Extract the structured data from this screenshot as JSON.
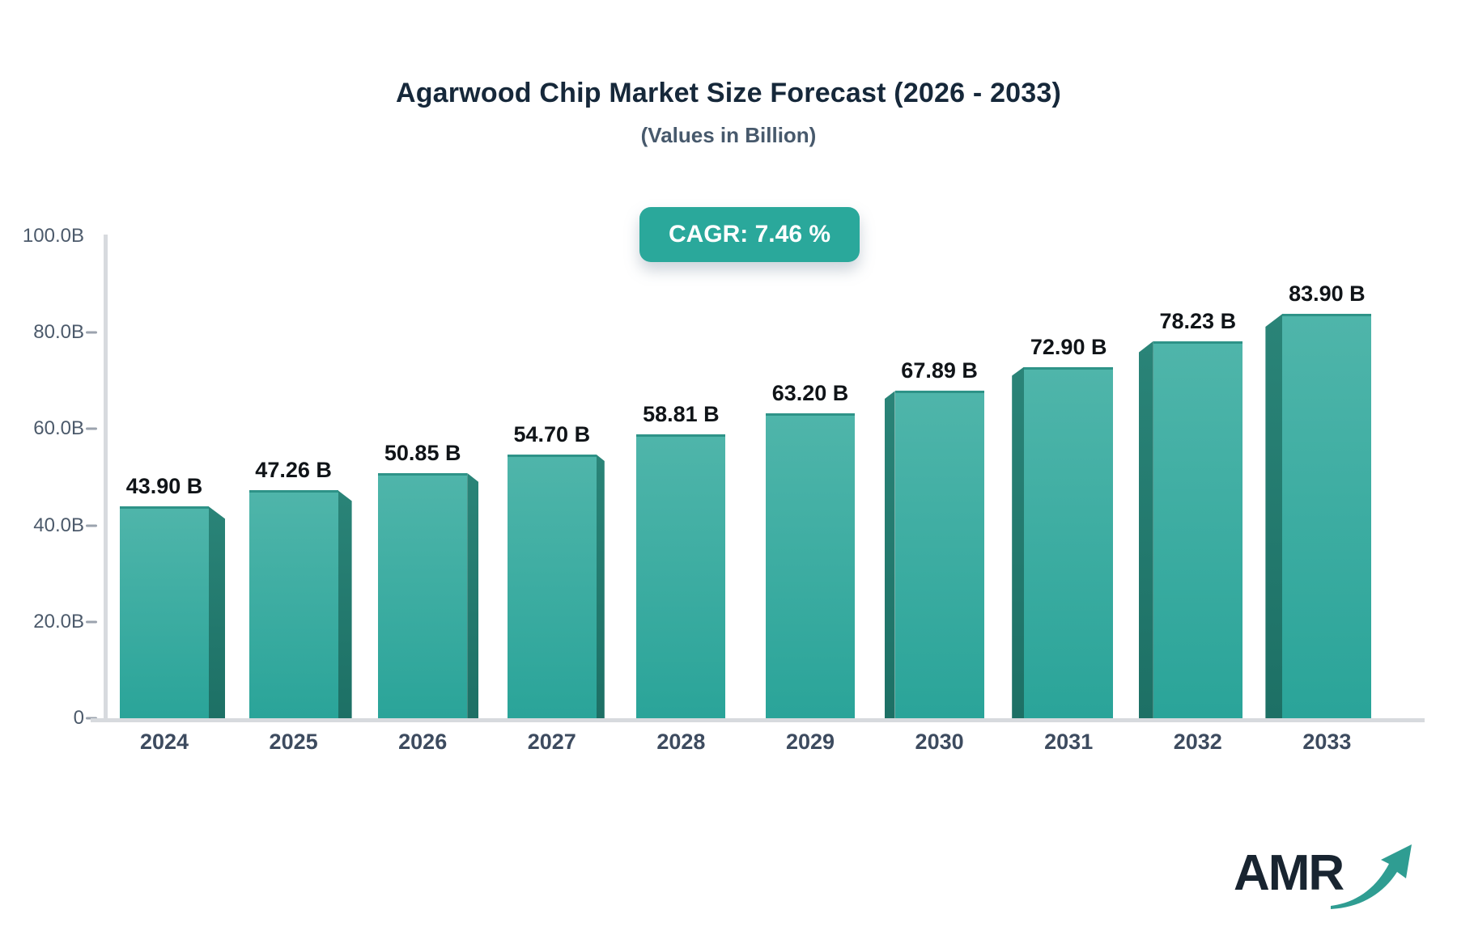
{
  "title": "Agarwood Chip Market Size Forecast (2026 - 2033)",
  "subtitle": "(Values in Billion)",
  "badge": {
    "label": "CAGR: 7.46 %"
  },
  "chart_data": {
    "type": "bar",
    "title": "Agarwood Chip Market Size Forecast (2026 - 2033)",
    "subtitle": "(Values in Billion)",
    "unit": "Billion",
    "categories": [
      "2024",
      "2025",
      "2026",
      "2027",
      "2028",
      "2029",
      "2030",
      "2031",
      "2032",
      "2033"
    ],
    "values": [
      43.9,
      47.26,
      50.85,
      54.7,
      58.81,
      63.2,
      67.89,
      72.9,
      78.23,
      83.9
    ],
    "value_labels": [
      "43.90 B",
      "47.26 B",
      "50.85 B",
      "54.70 B",
      "58.81 B",
      "63.20 B",
      "67.89 B",
      "72.90 B",
      "78.23 B",
      "83.90 B"
    ],
    "cagr": "7.46 %",
    "ylim": [
      0,
      100
    ],
    "yticks": [
      {
        "label": "100.0B",
        "value": 100
      },
      {
        "label": "80.0B",
        "value": 80
      },
      {
        "label": "60.0B",
        "value": 60
      },
      {
        "label": "40.0B",
        "value": 40
      },
      {
        "label": "20.0B",
        "value": 20
      },
      {
        "label": "0",
        "value": 0
      }
    ],
    "xlabel": "",
    "ylabel": "",
    "legend": "none",
    "grid": "off"
  },
  "colors": {
    "accent_teal": "#2aa89b",
    "bar_top": "#4fb5aa",
    "bar_bottom": "#2aa499",
    "bar_side_top": "#2a8478",
    "bar_side_bottom": "#1d7065",
    "bar_top_edge": "#2e9388",
    "axis_line": "#d7dade",
    "title_text": "#16283a",
    "subtitle_text": "#47596c",
    "axis_label_text": "#4c5a6b",
    "x_label_text": "#3d4b5f",
    "logo_text": "#182430",
    "logo_arrow": "#2f9d92"
  },
  "logo": {
    "text": "AMR",
    "icon": "growth-arrow-icon"
  }
}
